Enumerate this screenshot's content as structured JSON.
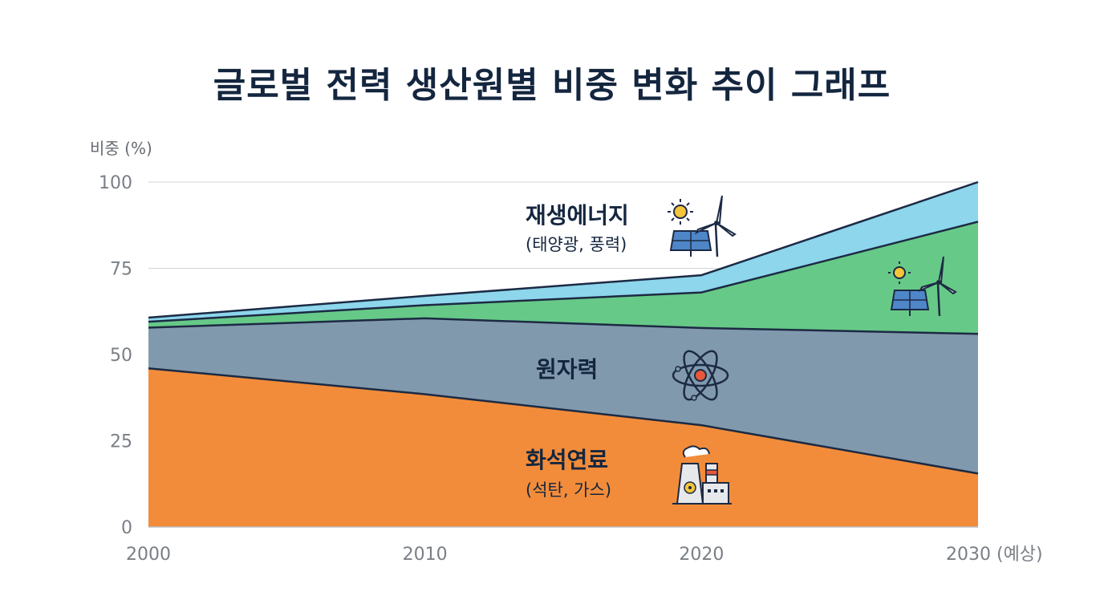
{
  "title": "글로벌 전력 생산원별 비중 변화 추이 그래프",
  "colors": {
    "fossil": "#f28c3a",
    "nuclear": "#8199ad",
    "renewable_green": "#67c987",
    "renewable_blue": "#8dd6ec",
    "line": "#1c2a44",
    "grid": "#cfd4d9"
  },
  "chart_data": {
    "type": "area",
    "stacked": true,
    "ylabel": "비중 (%)",
    "ylim": [
      0,
      100
    ],
    "yticks": [
      "0",
      "25",
      "50",
      "75",
      "100"
    ],
    "x": [
      2000,
      2010,
      2020,
      2030
    ],
    "xtick_labels": [
      "2000",
      "2010",
      "2020",
      "2030 (예상)"
    ],
    "grid": true,
    "series": [
      {
        "key": "fossil",
        "values": [
          46,
          38.5,
          29.5,
          15.5
        ]
      },
      {
        "key": "nuclear",
        "values": [
          11.8,
          22,
          28.2,
          40.5
        ]
      },
      {
        "key": "green",
        "values": [
          1.7,
          3.8,
          10.3,
          32.5
        ]
      },
      {
        "key": "blue",
        "values": [
          1.2,
          2.7,
          5,
          11.5
        ]
      }
    ],
    "annotations": [
      {
        "name": "renewable",
        "label": "재생에너지",
        "sub": "(태양광, 풍력)",
        "icon": "solar-wind-icon"
      },
      {
        "name": "nuclear",
        "label": "원자력",
        "icon": "atom-icon"
      },
      {
        "name": "fossil",
        "label": "화석연료",
        "sub": "(석탄, 가스)",
        "icon": "power-plant-icon"
      }
    ]
  }
}
